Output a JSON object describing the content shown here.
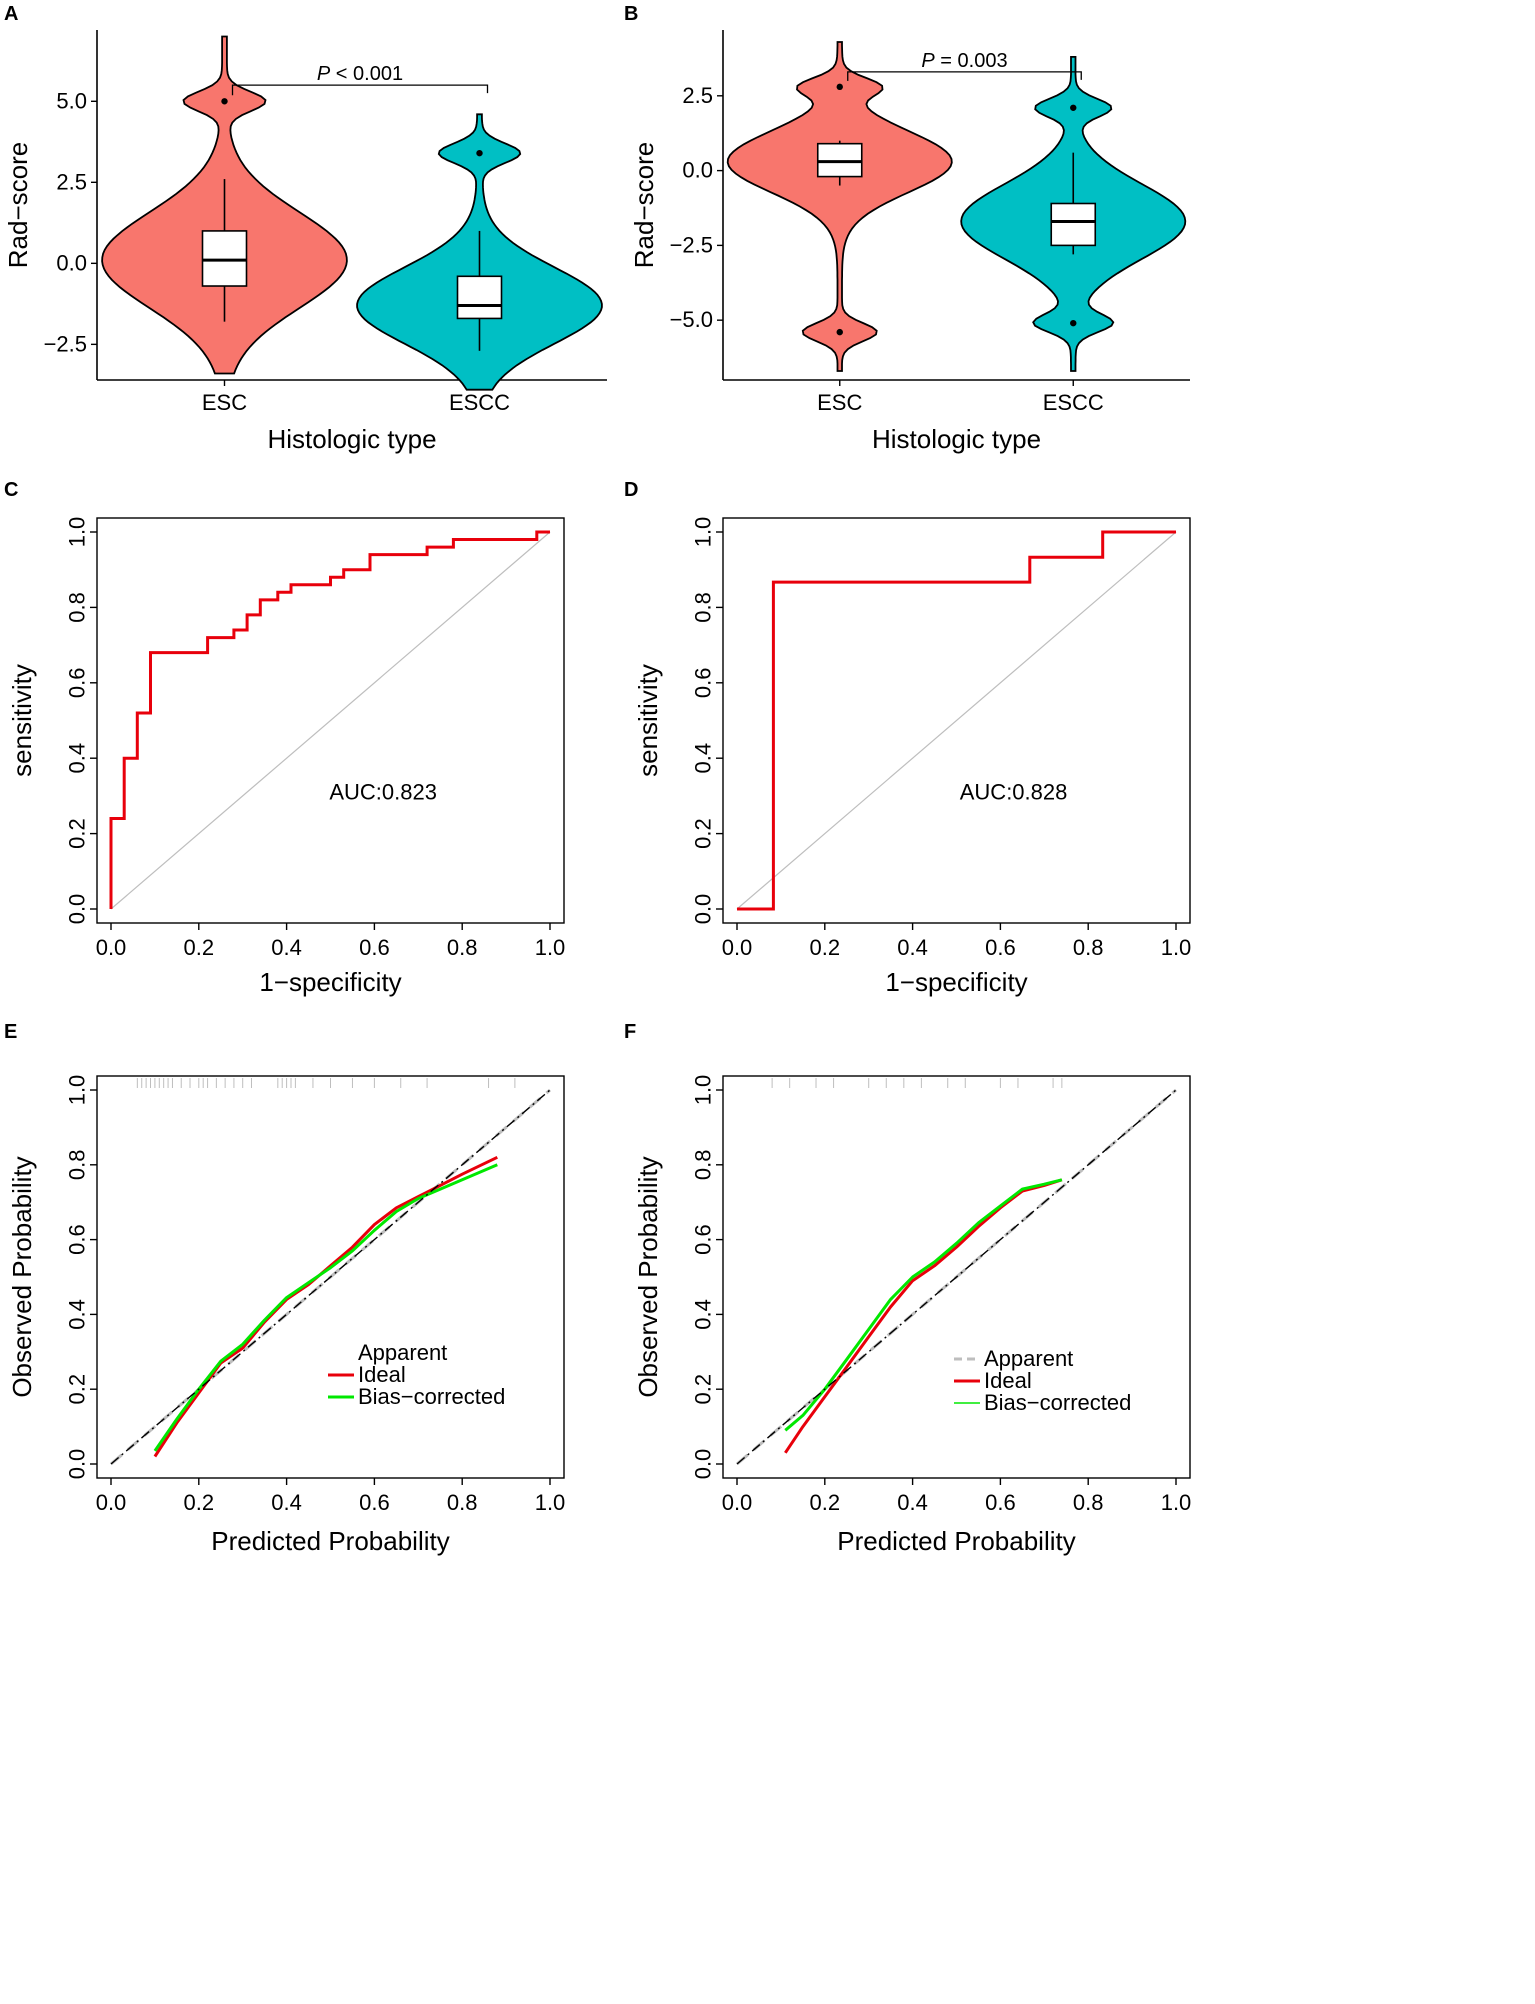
{
  "chart_data": [
    {
      "panel": "A",
      "type": "violin",
      "xlabel": "Histologic type",
      "ylabel": "Rad−score",
      "ylim": [
        -3.6,
        7.2
      ],
      "yticks": [
        -2.5,
        0.0,
        2.5,
        5.0
      ],
      "ytick_labels": [
        "−2.5",
        "0.0",
        "2.5",
        "5.0"
      ],
      "categories": [
        "ESC",
        "ESCC"
      ],
      "colors": [
        "#F8766D",
        "#00BFC4"
      ],
      "groups": [
        {
          "name": "ESC",
          "min": -3.4,
          "max": 7.0,
          "q1": -0.7,
          "median": 0.1,
          "q3": 1.0,
          "whisker_low": -1.8,
          "whisker_high": 2.6,
          "outliers": [
            5.0
          ]
        },
        {
          "name": "ESCC",
          "min": -3.9,
          "max": 4.6,
          "q1": -1.7,
          "median": -1.3,
          "q3": -0.4,
          "whisker_low": -2.7,
          "whisker_high": 1.0,
          "outliers": [
            3.4
          ]
        }
      ],
      "annotation": {
        "italic": "P",
        "text": " < 0.001",
        "y": 5.5
      }
    },
    {
      "panel": "B",
      "type": "violin",
      "xlabel": "Histologic type",
      "ylabel": "Rad−score",
      "ylim": [
        -7.0,
        4.7
      ],
      "yticks": [
        -5.0,
        -2.5,
        0.0,
        2.5
      ],
      "ytick_labels": [
        "−5.0",
        "−2.5",
        "0.0",
        "2.5"
      ],
      "categories": [
        "ESC",
        "ESCC"
      ],
      "colors": [
        "#F8766D",
        "#00BFC4"
      ],
      "groups": [
        {
          "name": "ESC",
          "min": -6.7,
          "max": 4.3,
          "q1": -0.2,
          "median": 0.3,
          "q3": 0.9,
          "whisker_low": -0.5,
          "whisker_high": 1.0,
          "outliers": [
            2.8,
            -5.4
          ]
        },
        {
          "name": "ESCC",
          "min": -6.7,
          "max": 3.8,
          "q1": -2.5,
          "median": -1.7,
          "q3": -1.1,
          "whisker_low": -2.8,
          "whisker_high": 0.6,
          "outliers": [
            2.1,
            -5.1
          ]
        }
      ],
      "annotation": {
        "italic": "P",
        "text": " = 0.003",
        "y": 3.3
      }
    },
    {
      "panel": "C",
      "type": "roc",
      "xlabel": "1−specificity",
      "ylabel": "sensitivity",
      "xlim": [
        0,
        1
      ],
      "ylim": [
        0,
        1
      ],
      "ticks": [
        "0.0",
        "0.2",
        "0.4",
        "0.6",
        "0.8",
        "1.0"
      ],
      "auc_label": "AUC:0.823",
      "auc_pos": [
        0.62,
        0.29
      ],
      "line_color": "#E8000B",
      "points": [
        [
          0.0,
          0.0
        ],
        [
          0.0,
          0.24
        ],
        [
          0.03,
          0.24
        ],
        [
          0.03,
          0.4
        ],
        [
          0.06,
          0.4
        ],
        [
          0.06,
          0.52
        ],
        [
          0.09,
          0.52
        ],
        [
          0.09,
          0.68
        ],
        [
          0.22,
          0.68
        ],
        [
          0.22,
          0.72
        ],
        [
          0.28,
          0.72
        ],
        [
          0.28,
          0.74
        ],
        [
          0.31,
          0.74
        ],
        [
          0.31,
          0.78
        ],
        [
          0.34,
          0.78
        ],
        [
          0.34,
          0.82
        ],
        [
          0.38,
          0.82
        ],
        [
          0.38,
          0.84
        ],
        [
          0.41,
          0.84
        ],
        [
          0.41,
          0.86
        ],
        [
          0.5,
          0.86
        ],
        [
          0.5,
          0.88
        ],
        [
          0.53,
          0.88
        ],
        [
          0.53,
          0.9
        ],
        [
          0.59,
          0.9
        ],
        [
          0.59,
          0.94
        ],
        [
          0.72,
          0.94
        ],
        [
          0.72,
          0.96
        ],
        [
          0.78,
          0.96
        ],
        [
          0.78,
          0.98
        ],
        [
          0.97,
          0.98
        ],
        [
          0.97,
          1.0
        ],
        [
          1.0,
          1.0
        ]
      ]
    },
    {
      "panel": "D",
      "type": "roc",
      "xlabel": "1−specificity",
      "ylabel": "sensitivity",
      "xlim": [
        0,
        1
      ],
      "ylim": [
        0,
        1
      ],
      "ticks": [
        "0.0",
        "0.2",
        "0.4",
        "0.6",
        "0.8",
        "1.0"
      ],
      "auc_label": "AUC:0.828",
      "auc_pos": [
        0.63,
        0.29
      ],
      "line_color": "#E8000B",
      "points": [
        [
          0.0,
          0.0
        ],
        [
          0.083,
          0.0
        ],
        [
          0.083,
          0.867
        ],
        [
          0.667,
          0.867
        ],
        [
          0.667,
          0.933
        ],
        [
          0.833,
          0.933
        ],
        [
          0.833,
          1.0
        ],
        [
          1.0,
          1.0
        ]
      ]
    },
    {
      "panel": "E",
      "type": "line",
      "xlabel": "Predicted Probability",
      "ylabel": "Observed Probability",
      "xlim": [
        0,
        1
      ],
      "ylim": [
        0,
        1
      ],
      "ticks": [
        "0.0",
        "0.2",
        "0.4",
        "0.6",
        "0.8",
        "1.0"
      ],
      "series": [
        {
          "name": "Apparent",
          "color": "#BEBEBE",
          "style": "dashed",
          "x": [
            0.0,
            1.0
          ],
          "y": [
            0.0,
            1.0
          ]
        },
        {
          "name": "Ideal",
          "color": "#E8000B",
          "style": "solid",
          "x": [
            0.1,
            0.15,
            0.2,
            0.25,
            0.3,
            0.35,
            0.4,
            0.45,
            0.5,
            0.55,
            0.6,
            0.65,
            0.7,
            0.75,
            0.8,
            0.88
          ],
          "y": [
            0.02,
            0.11,
            0.19,
            0.27,
            0.31,
            0.38,
            0.44,
            0.48,
            0.53,
            0.58,
            0.64,
            0.685,
            0.715,
            0.745,
            0.775,
            0.82
          ]
        },
        {
          "name": "Bias−corrected",
          "color": "#00E800",
          "style": "solid",
          "x": [
            0.1,
            0.15,
            0.2,
            0.25,
            0.3,
            0.35,
            0.4,
            0.45,
            0.5,
            0.55,
            0.6,
            0.65,
            0.7,
            0.75,
            0.8,
            0.88
          ],
          "y": [
            0.035,
            0.12,
            0.2,
            0.275,
            0.32,
            0.385,
            0.445,
            0.485,
            0.525,
            0.57,
            0.625,
            0.675,
            0.71,
            0.735,
            0.76,
            0.8
          ]
        },
        {
          "name": "reference",
          "color": "#000000",
          "style": "dotdash",
          "x": [
            0.0,
            1.0
          ],
          "y": [
            0.0,
            1.0
          ]
        }
      ],
      "rug": [
        0.06,
        0.07,
        0.08,
        0.09,
        0.1,
        0.11,
        0.12,
        0.13,
        0.14,
        0.16,
        0.18,
        0.2,
        0.21,
        0.22,
        0.24,
        0.26,
        0.28,
        0.3,
        0.32,
        0.38,
        0.39,
        0.4,
        0.41,
        0.42,
        0.46,
        0.5,
        0.55,
        0.6,
        0.66,
        0.72,
        0.86,
        0.92
      ],
      "legend": {
        "position": "bottom-right",
        "entries": [
          "Apparent",
          "Ideal",
          "Bias−corrected"
        ]
      }
    },
    {
      "panel": "F",
      "type": "line",
      "xlabel": "Predicted Probability",
      "ylabel": "Observed Probability",
      "xlim": [
        0,
        1
      ],
      "ylim": [
        0,
        1
      ],
      "ticks": [
        "0.0",
        "0.2",
        "0.4",
        "0.6",
        "0.8",
        "1.0"
      ],
      "series": [
        {
          "name": "Apparent",
          "color": "#BEBEBE",
          "style": "dashed",
          "x": [
            0.0,
            1.0
          ],
          "y": [
            0.0,
            1.0
          ]
        },
        {
          "name": "Ideal",
          "color": "#E8000B",
          "style": "solid",
          "x": [
            0.11,
            0.15,
            0.2,
            0.25,
            0.3,
            0.35,
            0.4,
            0.45,
            0.5,
            0.55,
            0.6,
            0.65,
            0.7,
            0.74
          ],
          "y": [
            0.03,
            0.1,
            0.18,
            0.26,
            0.34,
            0.42,
            0.49,
            0.53,
            0.58,
            0.635,
            0.685,
            0.73,
            0.745,
            0.76
          ]
        },
        {
          "name": "Bias−corrected",
          "color": "#00E800",
          "style": "solid",
          "x": [
            0.11,
            0.15,
            0.2,
            0.25,
            0.3,
            0.35,
            0.4,
            0.45,
            0.5,
            0.55,
            0.6,
            0.65,
            0.7,
            0.74
          ],
          "y": [
            0.09,
            0.13,
            0.2,
            0.28,
            0.36,
            0.44,
            0.5,
            0.54,
            0.59,
            0.645,
            0.69,
            0.735,
            0.748,
            0.76
          ]
        },
        {
          "name": "reference",
          "color": "#000000",
          "style": "dotdash",
          "x": [
            0.0,
            1.0
          ],
          "y": [
            0.0,
            1.0
          ]
        }
      ],
      "rug": [
        0.08,
        0.12,
        0.18,
        0.22,
        0.3,
        0.34,
        0.38,
        0.42,
        0.48,
        0.52,
        0.6,
        0.64,
        0.72,
        0.74
      ],
      "legend": {
        "position": "bottom-right",
        "entries": [
          "Apparent",
          "Ideal",
          "Bias−corrected"
        ]
      }
    }
  ]
}
